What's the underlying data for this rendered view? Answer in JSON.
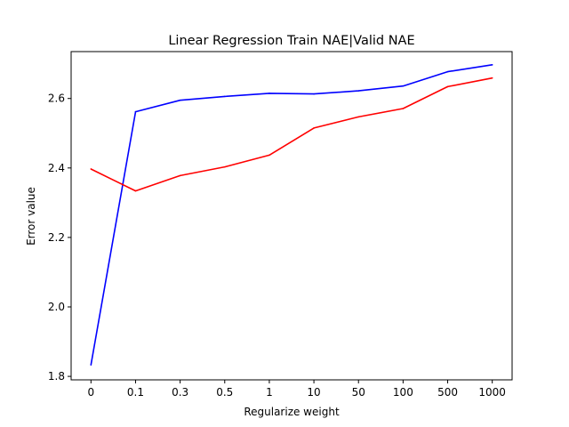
{
  "chart_data": {
    "type": "line",
    "title": "Linear Regression Train NAE|Valid NAE",
    "xlabel": "Regularize weight",
    "ylabel": "Error value",
    "categories": [
      "0",
      "0.1",
      "0.3",
      "0.5",
      "1",
      "10",
      "50",
      "100",
      "500",
      "1000"
    ],
    "ylim": [
      1.79,
      2.735
    ],
    "yticks": [
      "1.8",
      "2.0",
      "2.2",
      "2.4",
      "2.6"
    ],
    "grid": false,
    "series": [
      {
        "color": "#0000ff",
        "values": [
          1.833,
          2.562,
          2.595,
          2.606,
          2.615,
          2.613,
          2.622,
          2.636,
          2.677,
          2.697
        ]
      },
      {
        "color": "#ff0000",
        "values": [
          2.397,
          2.334,
          2.378,
          2.403,
          2.437,
          2.515,
          2.547,
          2.571,
          2.634,
          2.659
        ]
      }
    ]
  }
}
